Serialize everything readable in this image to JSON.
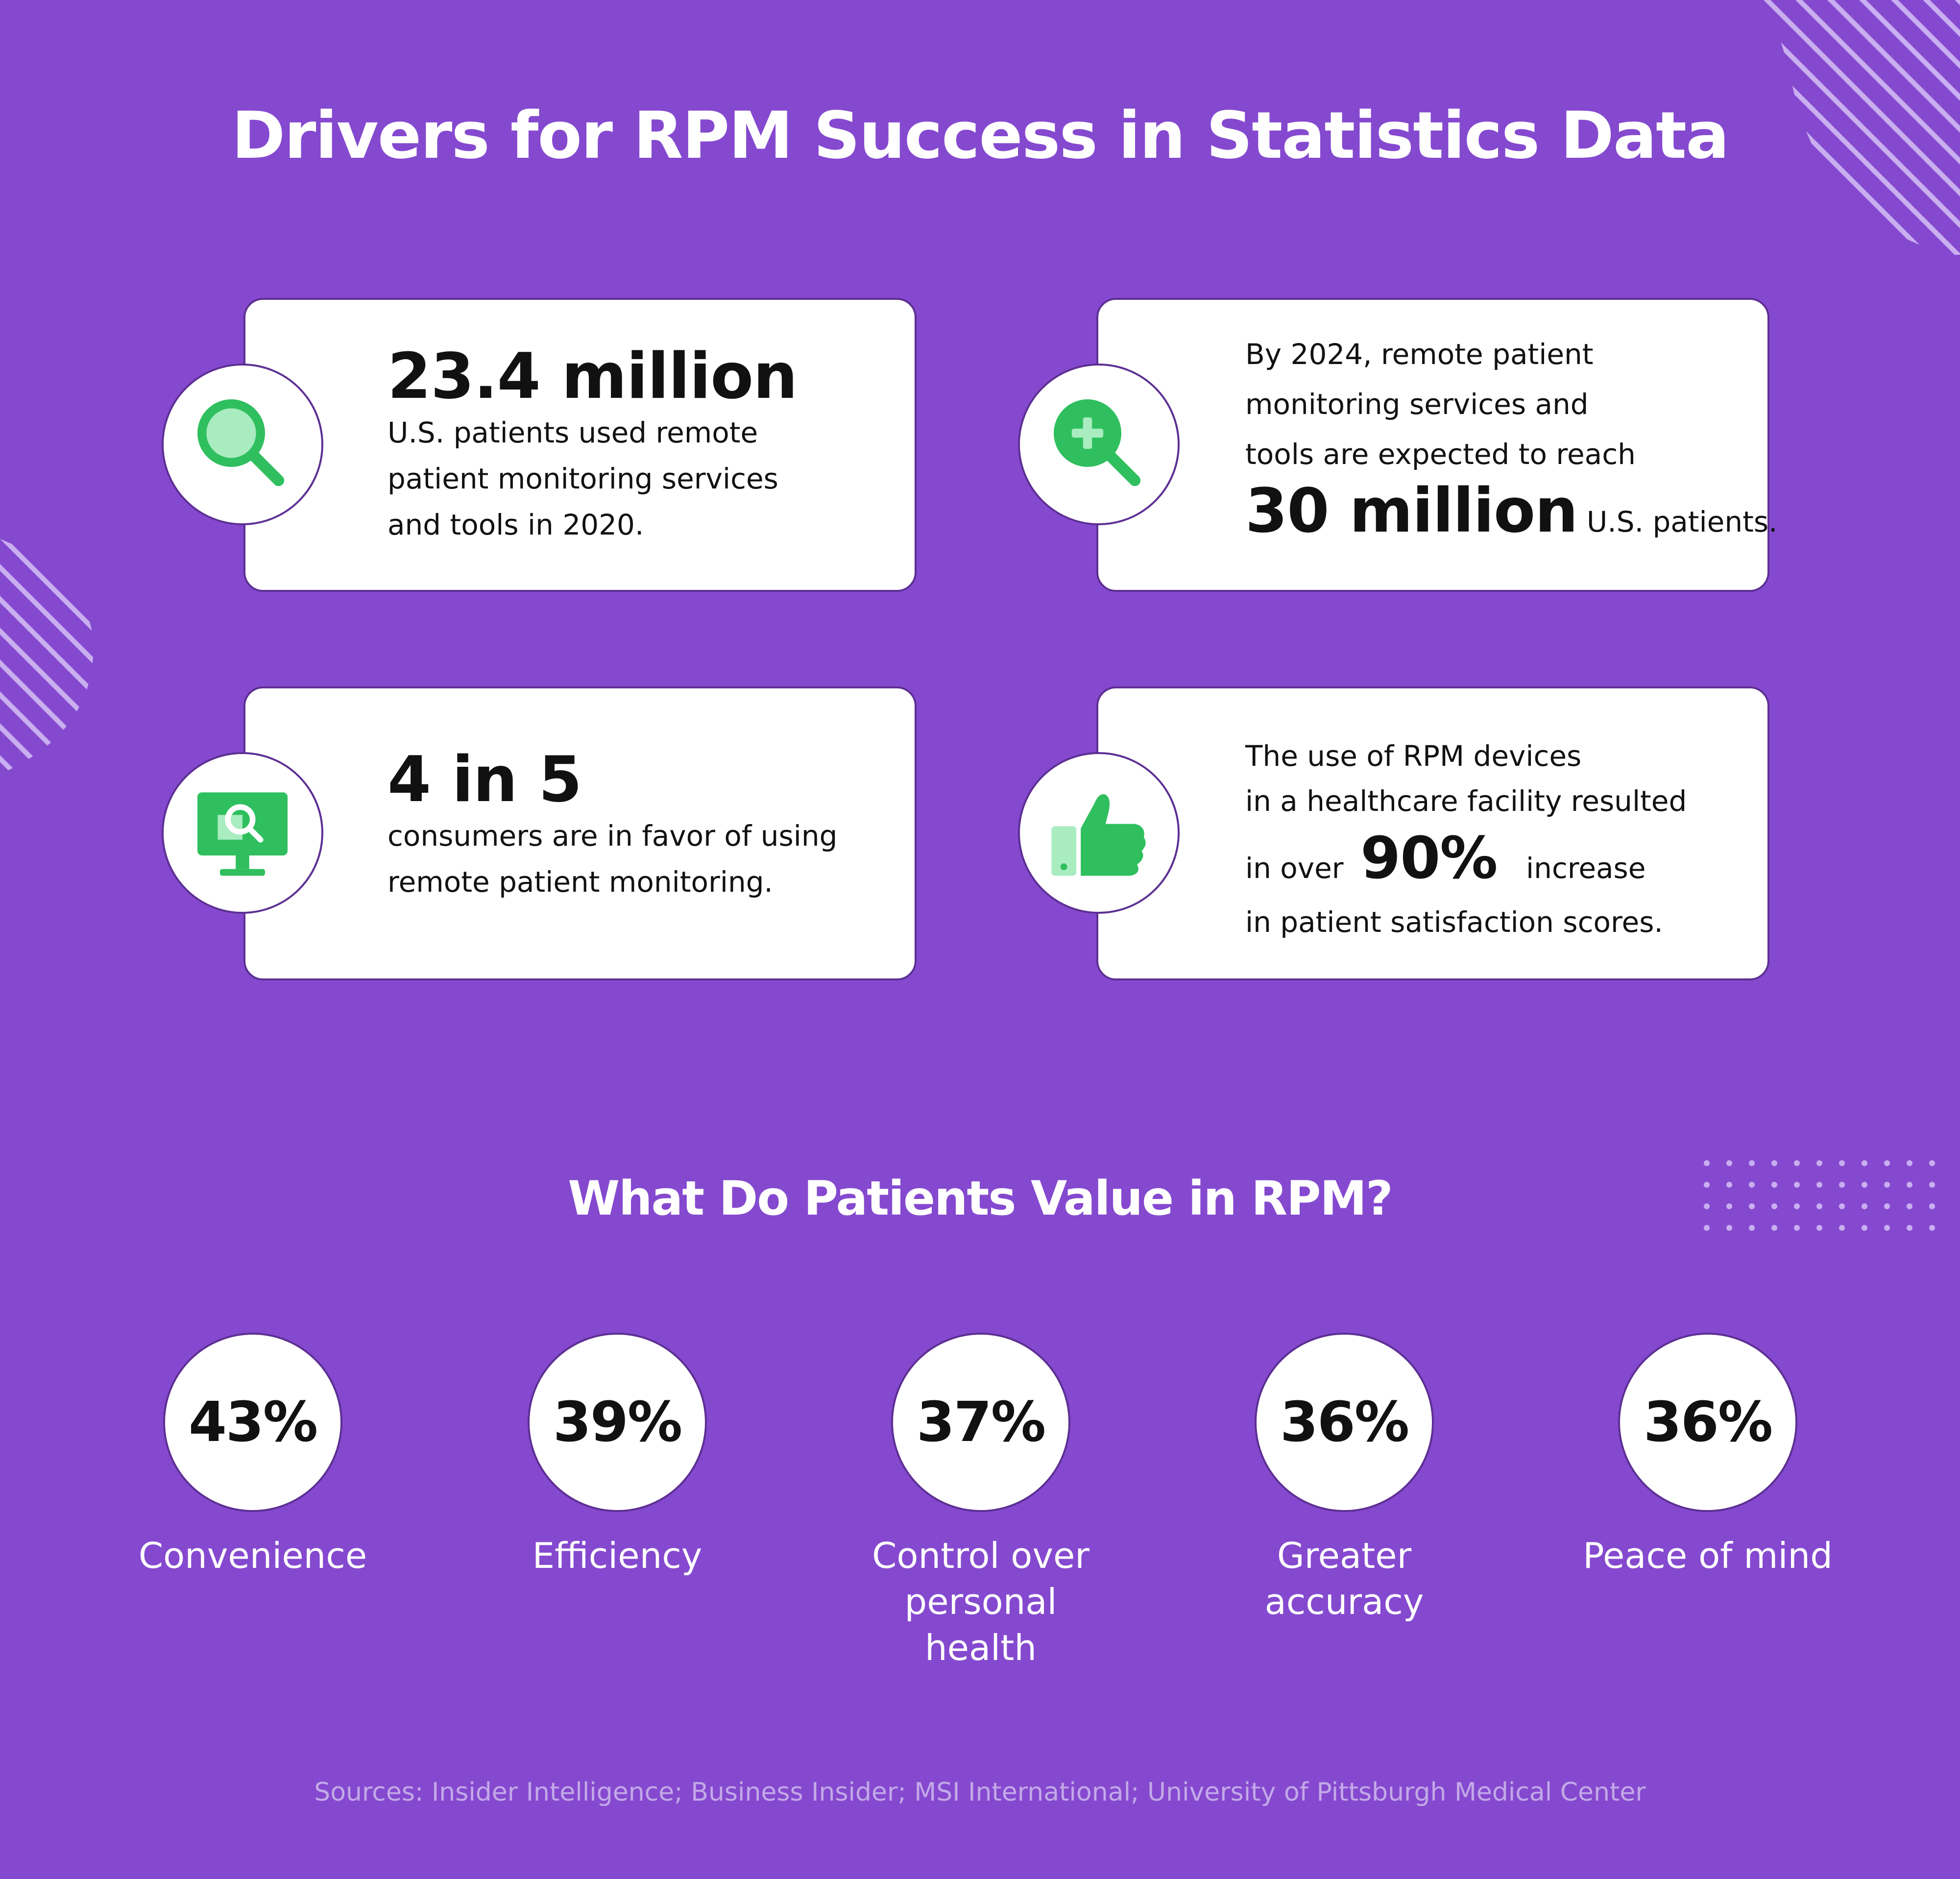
{
  "title": "Drivers for RPM Success in Statistics Data",
  "cards": [
    {
      "icon": "magnifier-icon",
      "headline": "23.4 million",
      "lines": [
        "U.S. patients used remote",
        "patient monitoring services",
        "and tools in 2020."
      ]
    },
    {
      "icon": "magnifier-plus-icon",
      "lines": [
        "By 2024, remote patient",
        "monitoring services and",
        "tools are expected to reach"
      ],
      "highlight": "30 million",
      "highlight_suffix": "U.S. patients."
    },
    {
      "icon": "monitor-search-icon",
      "headline": "4 in 5",
      "lines": [
        "consumers are in favor of using",
        "remote patient monitoring."
      ]
    },
    {
      "icon": "thumbs-up-icon",
      "lines": [
        "The use of RPM devices",
        "in a healthcare facility resulted"
      ],
      "prefix": "in over",
      "highlight": "90%",
      "suffix": "increase",
      "last_line": "in patient satisfaction scores."
    }
  ],
  "subtitle": "What Do Patients Value in RPM?",
  "stats": [
    {
      "value": "43%",
      "label": "Convenience"
    },
    {
      "value": "39%",
      "label": "Efficiency"
    },
    {
      "value": "37%",
      "label": "Control over personal health"
    },
    {
      "value": "36%",
      "label": "Greater accuracy"
    },
    {
      "value": "36%",
      "label": "Peace of mind"
    }
  ],
  "sources": "Sources: Insider Intelligence; Business Insider; MSI International; University of Pittsburgh Medical Center",
  "colors": {
    "background": "#8549cf",
    "card_border": "#5d2f93",
    "accent_green": "#2fbf5e",
    "accent_light_green": "#a8ecc0"
  }
}
